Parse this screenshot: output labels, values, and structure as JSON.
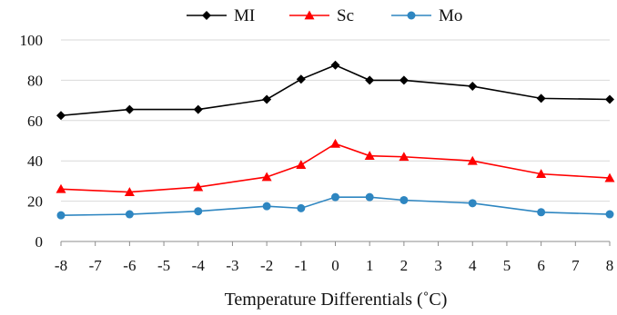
{
  "chart_data": {
    "type": "line",
    "title": "",
    "xlabel": "Temperature Differentials (˚C)",
    "ylabel": "",
    "xlim": [
      -8,
      8
    ],
    "ylim": [
      0,
      100
    ],
    "x_ticks": [
      "-8",
      "-7",
      "-6",
      "-5",
      "-4",
      "-3",
      "-2",
      "-1",
      "0",
      "1",
      "2",
      "3",
      "4",
      "5",
      "6",
      "7",
      "8"
    ],
    "y_ticks": [
      "0",
      "20",
      "40",
      "60",
      "80",
      "100"
    ],
    "grid": "horizontal",
    "legend_position": "top",
    "series": [
      {
        "name": "MI",
        "color": "#000000",
        "marker": "diamond",
        "x": [
          -8,
          -6,
          -4,
          -2,
          -1,
          0,
          1,
          2,
          4,
          6,
          8
        ],
        "values": [
          62.5,
          65.5,
          65.5,
          70.5,
          80.5,
          87.5,
          80.0,
          80.0,
          77.0,
          71.0,
          70.5
        ]
      },
      {
        "name": "Sc",
        "color": "#ff0000",
        "marker": "triangle",
        "x": [
          -8,
          -6,
          -4,
          -2,
          -1,
          0,
          1,
          2,
          4,
          6,
          8
        ],
        "values": [
          26.0,
          24.5,
          27.0,
          32.0,
          38.0,
          48.5,
          42.5,
          42.0,
          40.0,
          33.5,
          31.5
        ]
      },
      {
        "name": "Mo",
        "color": "#2e86c1",
        "marker": "circle",
        "x": [
          -8,
          -6,
          -4,
          -2,
          -1,
          0,
          1,
          2,
          4,
          6,
          8
        ],
        "values": [
          13.0,
          13.5,
          15.0,
          17.5,
          16.5,
          22.0,
          22.0,
          20.5,
          19.0,
          14.5,
          13.5
        ]
      }
    ]
  }
}
